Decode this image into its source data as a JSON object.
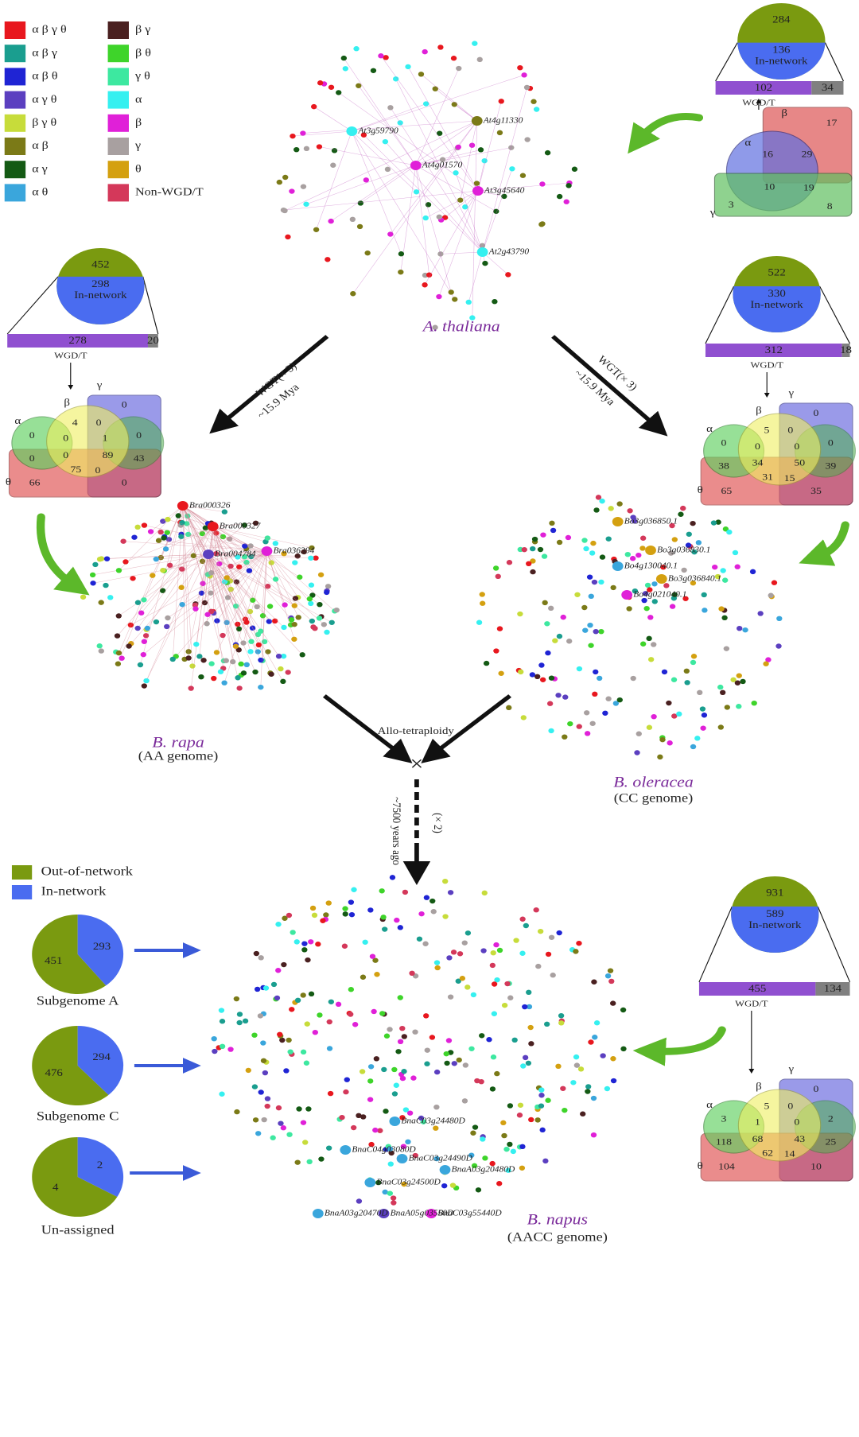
{
  "legend": [
    {
      "label": "α β γ θ",
      "color": "#e8171e"
    },
    {
      "label": "α β γ",
      "color": "#1a9e8f"
    },
    {
      "label": "α β θ",
      "color": "#1f24d4"
    },
    {
      "label": "α γ θ",
      "color": "#5b3fc0"
    },
    {
      "label": "β γ θ",
      "color": "#c7dc3a"
    },
    {
      "label": "α β",
      "color": "#7b7a17"
    },
    {
      "label": "α γ",
      "color": "#145a14"
    },
    {
      "label": "α θ",
      "color": "#3aa6dc"
    },
    {
      "label": "β γ",
      "color": "#4a2020"
    },
    {
      "label": "β θ",
      "color": "#3ed42a"
    },
    {
      "label": "γ θ",
      "color": "#3de8a0"
    },
    {
      "label": "α",
      "color": "#35f0f0"
    },
    {
      "label": "β",
      "color": "#e020d8"
    },
    {
      "label": "γ",
      "color": "#a8a0a0"
    },
    {
      "label": "θ",
      "color": "#d4a010"
    },
    {
      "label": "Non-WGD/T",
      "color": "#d4385a"
    }
  ],
  "networks": [
    {
      "name": "A. thaliana",
      "hubs": [
        "At3g59790",
        "At4g11330",
        "At4g01570",
        "At3g45640",
        "At2g43790"
      ]
    },
    {
      "name": "B. rapa",
      "genome": "(AA genome)",
      "hubs": [
        "Bra000326",
        "Bra000327",
        "Bra004784",
        "Bra036394"
      ]
    },
    {
      "name": "B. oleracea",
      "genome": "(CC genome)",
      "hubs": [
        "Bo3g036850.1",
        "Bo3g036830.1",
        "Bo4g130040.1",
        "Bo3g036840.1",
        "Bo4g021040.1"
      ]
    },
    {
      "name": "B. napus",
      "genome": "(AACC genome)",
      "hubs": [
        "BnaC03g24480D",
        "BnaC04g03080D",
        "BnaC03g24490D",
        "BnaA03g20480D",
        "BnaC03g24500D",
        "BnaC03g55440D",
        "BnaA03g20470D",
        "BnaA05g03550D"
      ]
    }
  ],
  "wgt_arrows": [
    {
      "label": "WGT(× 3)",
      "age": "~15.9 Mya"
    },
    {
      "label": "WGT(× 3)",
      "age": "~15.9 Mya"
    }
  ],
  "hybridization": {
    "label": "Allo-tetraploidy",
    "cross": "×",
    "doubling": "(× 2)",
    "age": "~7500 years ago"
  },
  "summaries": [
    {
      "total": 284,
      "in_network": 136,
      "in_label": "In-network",
      "wgd": 102,
      "non_wgd": 34,
      "wgd_label": "WGD/T",
      "venn": {
        "sets": [
          "α",
          "β",
          "γ"
        ],
        "counts": [
          17,
          16,
          29,
          10,
          19,
          3,
          8
        ]
      }
    },
    {
      "total": 452,
      "in_network": 298,
      "in_label": "In-network",
      "wgd": 278,
      "non_wgd": 20,
      "wgd_label": "WGD/T",
      "venn": {
        "sets": [
          "α",
          "β",
          "γ",
          "θ"
        ],
        "counts": [
          0,
          4,
          0,
          0,
          0,
          1,
          0,
          0,
          0,
          89,
          43,
          75,
          0,
          66,
          0
        ]
      }
    },
    {
      "total": 522,
      "in_network": 330,
      "in_label": "In-network",
      "wgd": 312,
      "non_wgd": 18,
      "wgd_label": "WGD/T",
      "venn": {
        "sets": [
          "α",
          "β",
          "γ",
          "θ"
        ],
        "counts": [
          0,
          5,
          0,
          0,
          0,
          0,
          0,
          38,
          34,
          50,
          39,
          31,
          15,
          65,
          35
        ]
      }
    },
    {
      "total": 931,
      "in_network": 589,
      "in_label": "In-network",
      "wgd": 455,
      "non_wgd": 134,
      "wgd_label": "WGD/T",
      "venn": {
        "sets": [
          "α",
          "β",
          "γ",
          "θ"
        ],
        "counts": [
          0,
          5,
          0,
          3,
          1,
          0,
          2,
          118,
          68,
          43,
          25,
          62,
          14,
          104,
          10
        ]
      }
    }
  ],
  "subgenome_legend": {
    "out_label": "Out-of-network",
    "out_color": "#7a9a10",
    "in_label": "In-network",
    "in_color": "#4a6cf0"
  },
  "subgenomes": [
    {
      "name": "Subgenome A",
      "out": 451,
      "in": 293
    },
    {
      "name": "Subgenome C",
      "out": 476,
      "in": 294
    },
    {
      "name": "Un-assigned",
      "out": 4,
      "in": 2
    }
  ]
}
